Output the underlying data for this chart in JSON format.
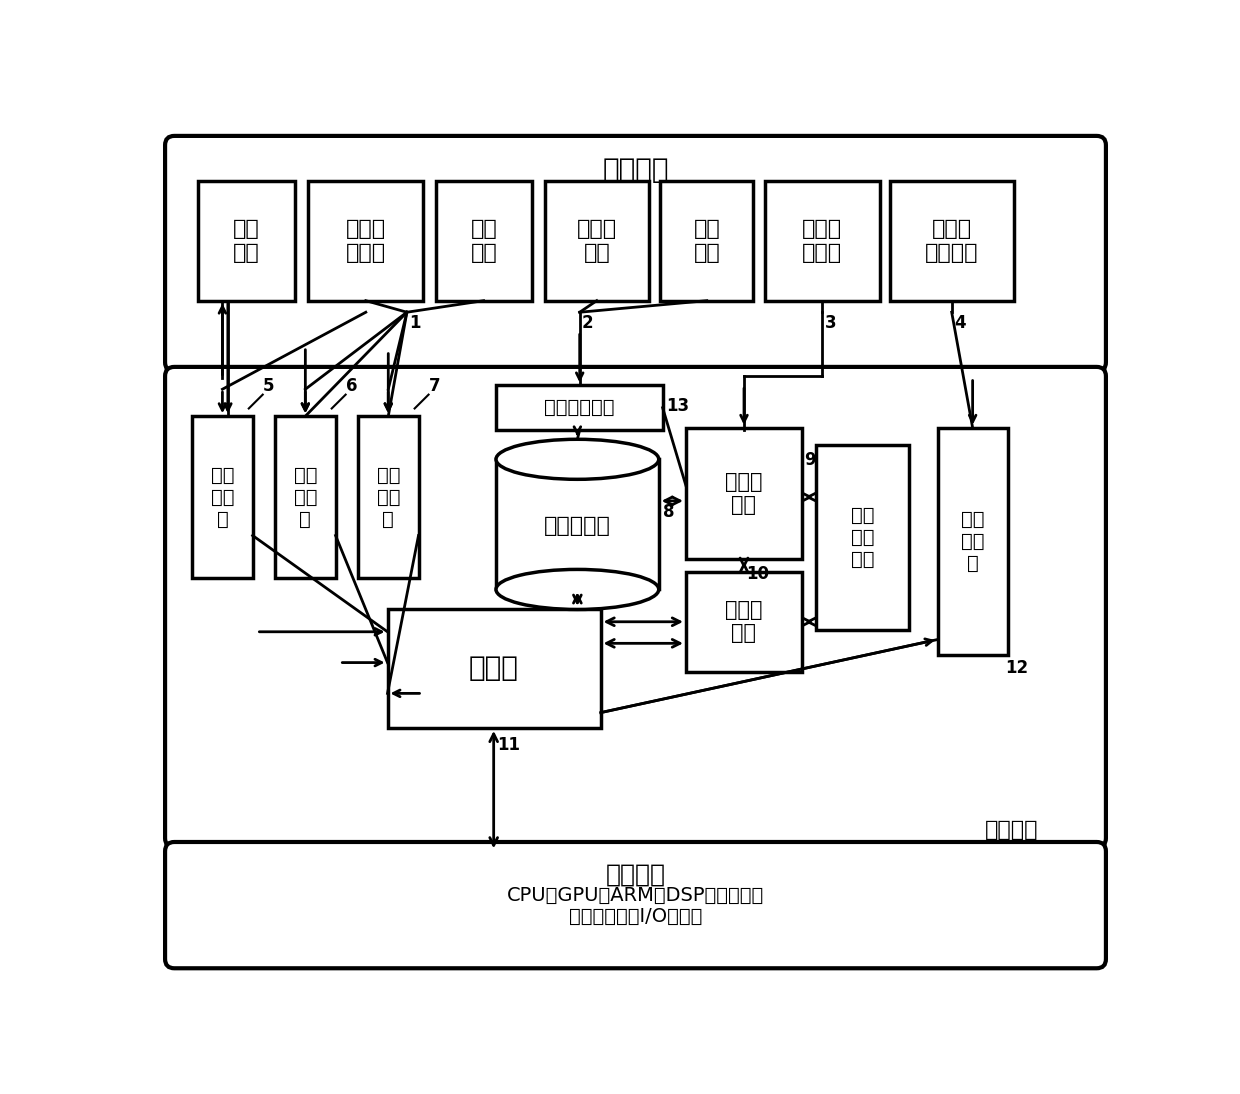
{
  "ui_label": "用户接口",
  "runtime_label": "运行环境",
  "hw_label": "硬件平台",
  "hw_sub1": "CPU，GPU，ARM，DSP等计算单元",
  "hw_sub2": "内存，硬盘，I/O设备等",
  "ui_box_labels": [
    "日志\n文件",
    "配置描\n述模块",
    "操作\n程序",
    "参数数\n据库",
    "用户\n输入",
    "模型描\n述模块",
    "图形化\n显示模块"
  ],
  "left_box_labels": [
    "日志\n管理\n器",
    "配置\n管理\n器",
    "操作\n管理\n器"
  ],
  "monitor_label": "运行监测模块",
  "dm_label": "数据管理器",
  "sch_label": "调度器",
  "nb_label": "网络构\n建器",
  "nm_label": "网络管\n理器",
  "nmo_label": "网络\n模型\n对象",
  "rm_label": "规则\n管理\n器",
  "nums": {
    "1": "1",
    "2": "2",
    "3": "3",
    "4": "4",
    "5": "5",
    "6": "6",
    "7": "7",
    "8": "8",
    "9": "9",
    "10": "10",
    "11": "11",
    "12": "12",
    "13": "13"
  }
}
